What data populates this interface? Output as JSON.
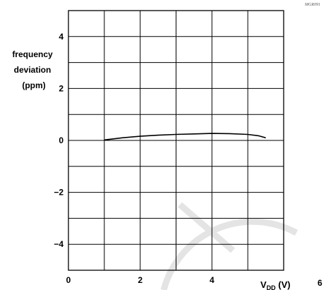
{
  "chart_data": {
    "type": "line",
    "code": "MGR091",
    "ylabel_lines": [
      "frequency",
      "deviation",
      "(ppm)"
    ],
    "xlabel": "V",
    "xlabel_sub": "DD",
    "xlabel_unit": " (V)",
    "xlim": [
      0,
      6
    ],
    "ylim": [
      -5,
      5
    ],
    "x_ticks": [
      {
        "value": 0,
        "label": "0"
      },
      {
        "value": 2,
        "label": "2"
      },
      {
        "value": 4,
        "label": "4"
      },
      {
        "value": 6,
        "label": "6"
      }
    ],
    "y_ticks": [
      {
        "value": 4,
        "label": "4"
      },
      {
        "value": 2,
        "label": "2"
      },
      {
        "value": 0,
        "label": "0"
      },
      {
        "value": -2,
        "label": "−2"
      },
      {
        "value": -4,
        "label": "−4"
      }
    ],
    "x_grid_step": 1,
    "y_grid_step": 1,
    "grid": true,
    "series": [
      {
        "points": [
          [
            1.0,
            0.02
          ],
          [
            1.5,
            0.1
          ],
          [
            2.0,
            0.16
          ],
          [
            2.5,
            0.2
          ],
          [
            3.0,
            0.23
          ],
          [
            3.5,
            0.25
          ],
          [
            4.0,
            0.27
          ],
          [
            4.5,
            0.26
          ],
          [
            5.0,
            0.23
          ],
          [
            5.3,
            0.18
          ],
          [
            5.5,
            0.1
          ]
        ]
      }
    ]
  }
}
